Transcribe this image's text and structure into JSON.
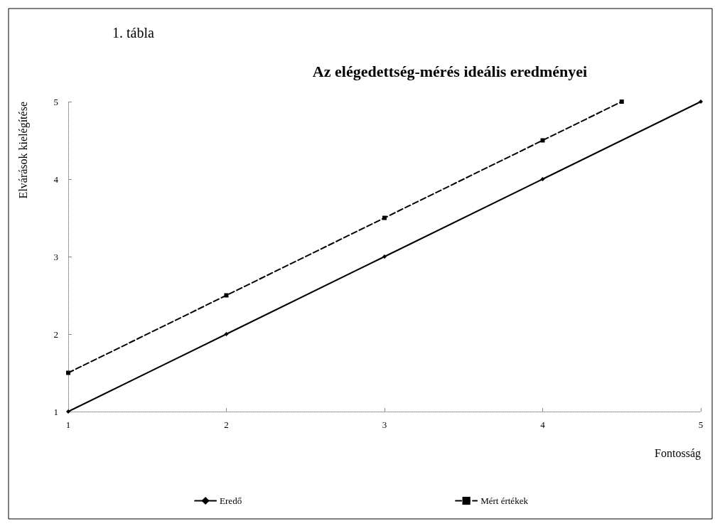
{
  "chart_data": {
    "type": "line",
    "title": "Az elégedettség-mérés ideális eredményei",
    "xlabel": "Fontosság",
    "ylabel": "Elvárások kielégítése",
    "annotations": [
      "1. tábla"
    ],
    "xlim": [
      1,
      5
    ],
    "xticks": [
      1,
      2,
      3,
      4,
      5
    ],
    "ylim": [
      1,
      5
    ],
    "yticks": [
      1,
      2,
      3,
      4,
      5
    ],
    "grid": false,
    "legend": "bottom",
    "series": [
      {
        "name": "Eredő",
        "color": "#000000",
        "x": [
          1,
          2,
          3,
          4,
          5
        ],
        "values": [
          1,
          2,
          3,
          4,
          5
        ],
        "marker": "diamond",
        "line_style": "solid"
      },
      {
        "name": "Mért értékek",
        "color": "#000000",
        "x": [
          1,
          2,
          3,
          4,
          4.5
        ],
        "values": [
          1.5,
          2.5,
          3.5,
          4.5,
          5
        ],
        "marker": "square",
        "line_style": "dashed"
      }
    ]
  }
}
